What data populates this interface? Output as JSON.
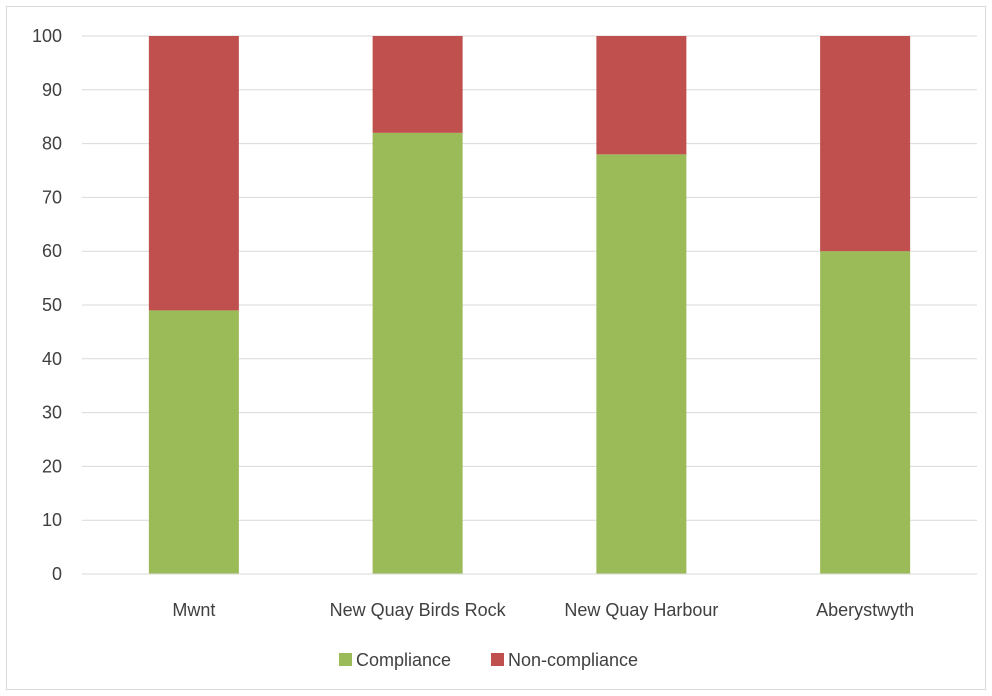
{
  "chart_data": {
    "type": "bar",
    "stacked": true,
    "categories": [
      "Mwnt",
      "New Quay Birds Rock",
      "New Quay Harbour",
      "Aberystwyth"
    ],
    "series": [
      {
        "name": "Compliance",
        "values": [
          49,
          82,
          78,
          60
        ],
        "color": "#9bbb59"
      },
      {
        "name": "Non-compliance",
        "values": [
          51,
          18,
          22,
          40
        ],
        "color": "#c0504d"
      }
    ],
    "ylim": [
      0,
      100
    ],
    "yticks": [
      0,
      10,
      20,
      30,
      40,
      50,
      60,
      70,
      80,
      90,
      100
    ],
    "grid": true,
    "legend_position": "bottom"
  }
}
